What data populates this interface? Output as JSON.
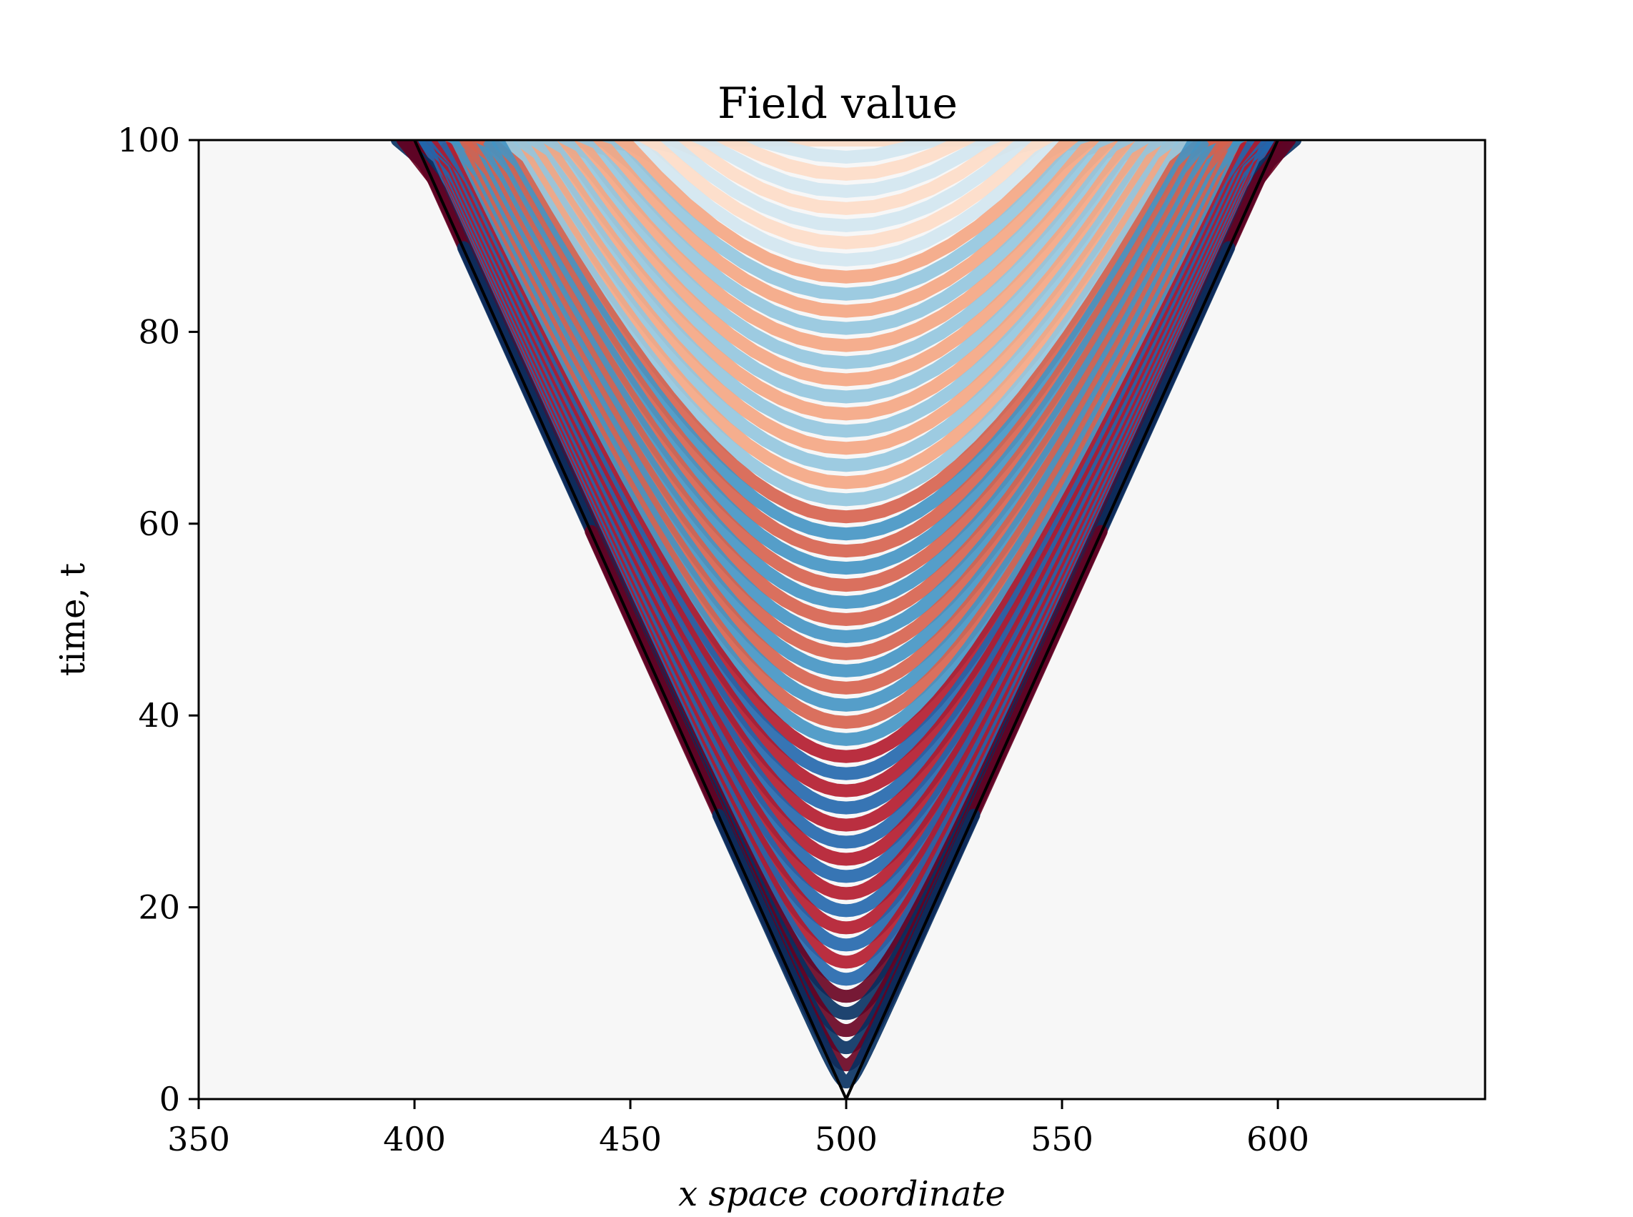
{
  "chart_data": {
    "type": "heatmap",
    "title": "Field value",
    "xlabel": "x space coordinate",
    "ylabel": "time, t",
    "xlim": [
      350,
      648
    ],
    "ylim": [
      0,
      100
    ],
    "x_ticks": [
      350,
      400,
      450,
      500,
      550,
      600
    ],
    "y_ticks": [
      0,
      20,
      40,
      60,
      80,
      100
    ],
    "colormap": "RdBu",
    "background_color": "#f7f7f7",
    "grid": false,
    "light_cone": {
      "apex": [
        500,
        0
      ],
      "left_edge": [
        [
          500,
          0
        ],
        [
          400,
          100
        ]
      ],
      "right_edge": [
        [
          500,
          0
        ],
        [
          600,
          100
        ]
      ],
      "color": "#000000"
    },
    "field": {
      "center_x": 500,
      "fringe_count_at_top": 28,
      "pattern": "oscillating red/blue hyperbolic fringes inside the light cone, amplitude highest near the center x = 500"
    }
  }
}
